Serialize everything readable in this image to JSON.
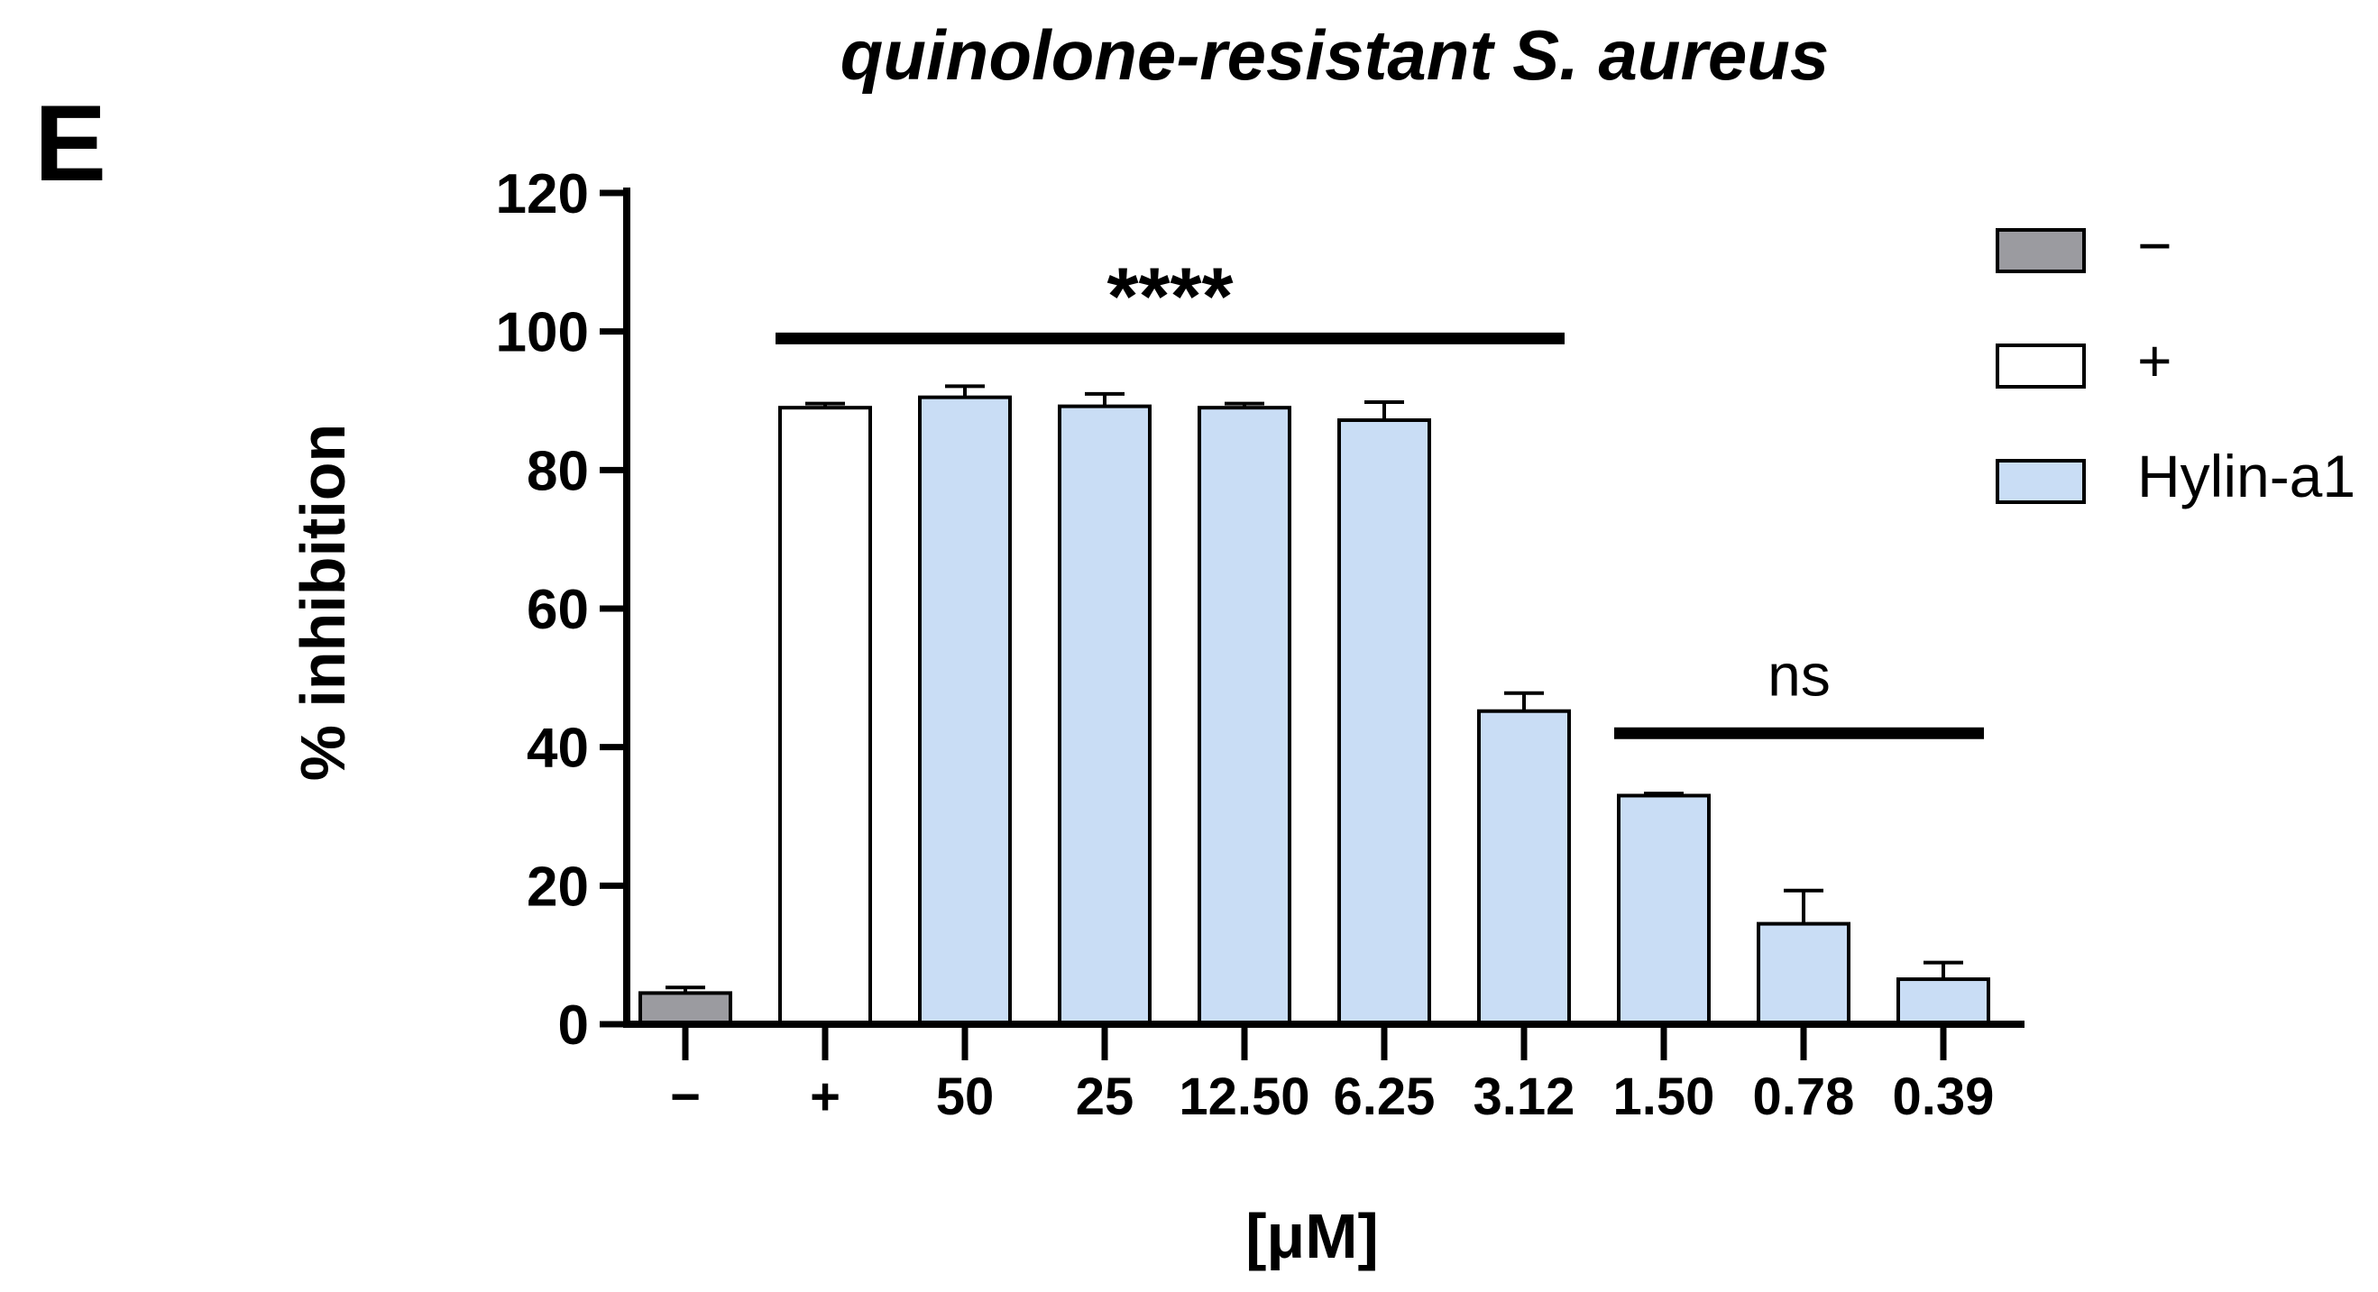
{
  "panel_label": "E",
  "chart_data": {
    "type": "bar",
    "title": "quinolone-resistant S. aureus",
    "xlabel": "[μM]",
    "ylabel": "% inhibition",
    "ylim": [
      0,
      120
    ],
    "yticks": [
      0,
      20,
      40,
      60,
      80,
      100,
      120
    ],
    "grid": false,
    "legend_position": "top-right",
    "categories": [
      "−",
      "+",
      "50",
      "25",
      "12.50",
      "6.25",
      "3.12",
      "1.50",
      "0.78",
      "0.39"
    ],
    "values": [
      4.5,
      89,
      90.5,
      89.2,
      89,
      87.2,
      45.2,
      33,
      14.5,
      6.5
    ],
    "errors": [
      0.8,
      0.6,
      1.6,
      1.8,
      0.6,
      2.6,
      2.6,
      0.3,
      4.8,
      2.4
    ],
    "bar_groups": [
      "−",
      "+",
      "Hylin-a1",
      "Hylin-a1",
      "Hylin-a1",
      "Hylin-a1",
      "Hylin-a1",
      "Hylin-a1",
      "Hylin-a1",
      "Hylin-a1"
    ],
    "legend": [
      {
        "name": "−",
        "color": "#9b9ba0"
      },
      {
        "name": "+",
        "color": "#ffffff"
      },
      {
        "name": "Hylin-a1",
        "color": "#c9ddf5"
      }
    ],
    "annotations": [
      {
        "text": "****",
        "from_category": "+",
        "to_category": "3.12",
        "y": 99
      },
      {
        "text": "ns",
        "from_category": "1.50",
        "to_category": "0.39",
        "y": 42
      }
    ]
  }
}
